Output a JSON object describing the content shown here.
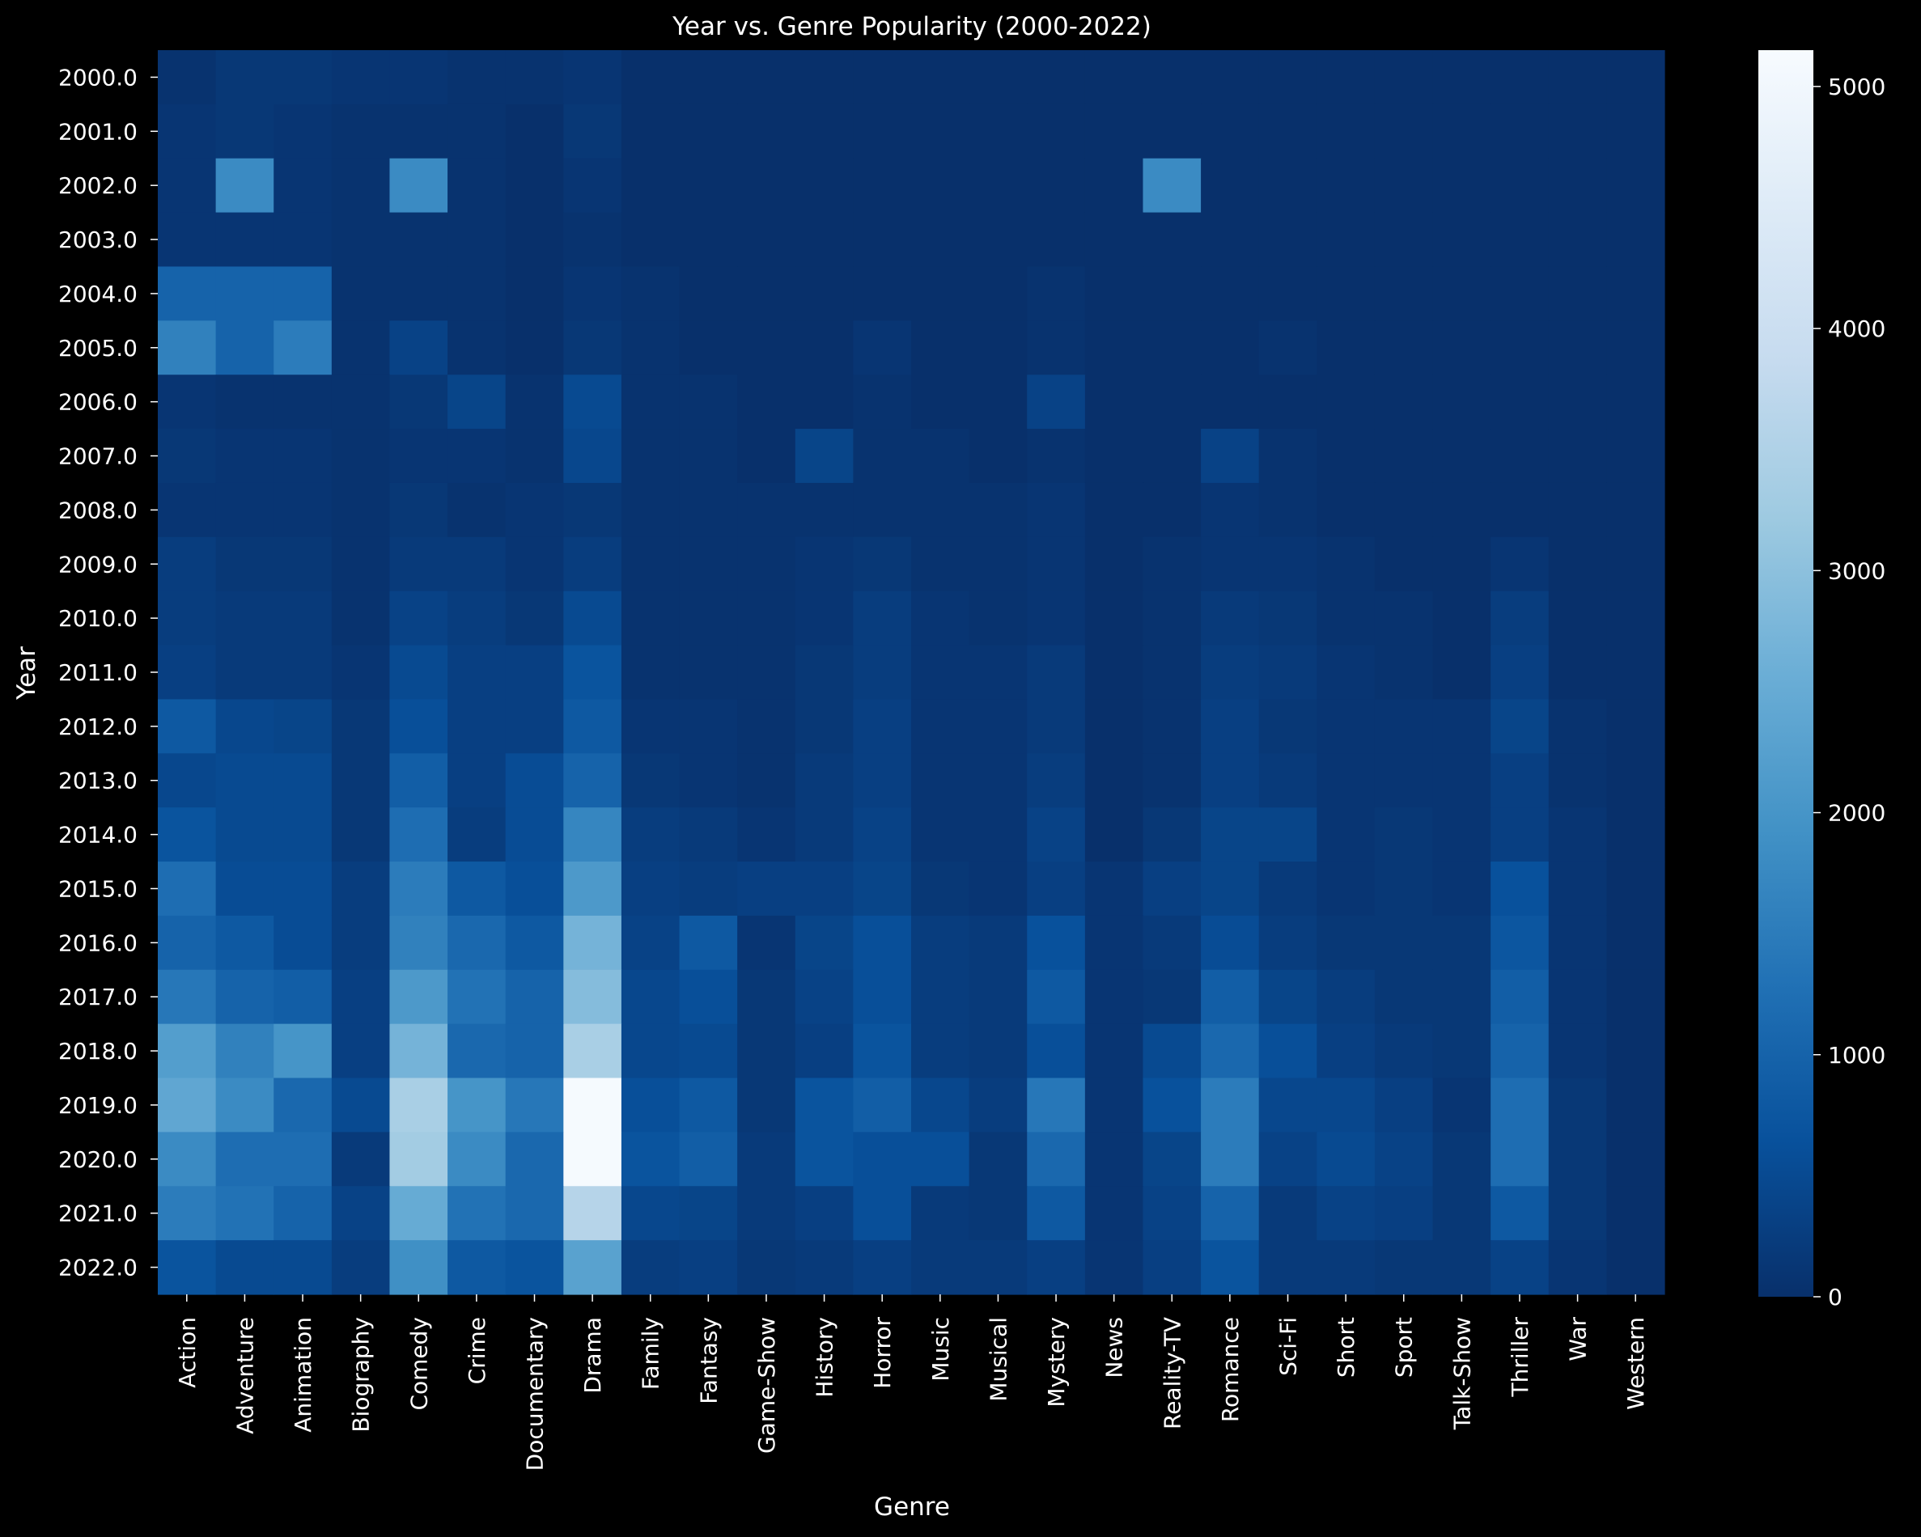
{
  "chart_data": {
    "type": "heatmap",
    "title": "Year vs. Genre Popularity (2000-2022)",
    "xlabel": "Genre",
    "ylabel": "Year",
    "x_categories": [
      "Action",
      "Adventure",
      "Animation",
      "Biography",
      "Comedy",
      "Crime",
      "Documentary",
      "Drama",
      "Family",
      "Fantasy",
      "Game-Show",
      "History",
      "Horror",
      "Music",
      "Musical",
      "Mystery",
      "News",
      "Reality-TV",
      "Romance",
      "Sci-Fi",
      "Short",
      "Sport",
      "Talk-Show",
      "Thriller",
      "War",
      "Western"
    ],
    "y_categories": [
      "2000.0",
      "2001.0",
      "2002.0",
      "2003.0",
      "2004.0",
      "2005.0",
      "2006.0",
      "2007.0",
      "2008.0",
      "2009.0",
      "2010.0",
      "2011.0",
      "2012.0",
      "2013.0",
      "2014.0",
      "2015.0",
      "2016.0",
      "2017.0",
      "2018.0",
      "2019.0",
      "2020.0",
      "2021.0",
      "2022.0"
    ],
    "values": [
      [
        50,
        150,
        150,
        100,
        100,
        50,
        50,
        100,
        0,
        0,
        0,
        0,
        0,
        0,
        0,
        0,
        0,
        0,
        0,
        0,
        0,
        0,
        0,
        0,
        0,
        0
      ],
      [
        100,
        150,
        100,
        50,
        50,
        50,
        0,
        150,
        0,
        0,
        0,
        0,
        0,
        0,
        0,
        0,
        0,
        0,
        0,
        0,
        0,
        0,
        0,
        0,
        0,
        0
      ],
      [
        100,
        1800,
        100,
        50,
        1800,
        50,
        0,
        100,
        0,
        0,
        0,
        0,
        0,
        0,
        0,
        0,
        0,
        1800,
        0,
        0,
        0,
        0,
        0,
        0,
        0,
        0
      ],
      [
        100,
        100,
        100,
        50,
        50,
        50,
        0,
        50,
        0,
        0,
        0,
        0,
        0,
        0,
        0,
        0,
        0,
        0,
        0,
        0,
        0,
        0,
        0,
        0,
        0,
        0
      ],
      [
        1000,
        1000,
        1000,
        50,
        50,
        50,
        0,
        100,
        50,
        0,
        0,
        0,
        0,
        0,
        0,
        50,
        0,
        0,
        0,
        0,
        0,
        0,
        0,
        0,
        0,
        0
      ],
      [
        1600,
        1000,
        1500,
        50,
        350,
        50,
        0,
        150,
        50,
        0,
        0,
        0,
        100,
        0,
        0,
        50,
        0,
        0,
        0,
        50,
        0,
        0,
        0,
        0,
        0,
        0
      ],
      [
        100,
        50,
        50,
        50,
        150,
        400,
        50,
        500,
        50,
        50,
        0,
        0,
        50,
        0,
        0,
        350,
        0,
        0,
        0,
        0,
        0,
        0,
        0,
        0,
        0,
        0
      ],
      [
        150,
        100,
        100,
        50,
        100,
        100,
        50,
        450,
        50,
        50,
        0,
        400,
        50,
        50,
        0,
        50,
        0,
        0,
        350,
        50,
        0,
        0,
        0,
        0,
        0,
        0
      ],
      [
        100,
        100,
        100,
        50,
        150,
        50,
        100,
        150,
        50,
        50,
        50,
        50,
        50,
        50,
        50,
        100,
        0,
        0,
        100,
        50,
        0,
        0,
        0,
        0,
        0,
        0
      ],
      [
        250,
        150,
        150,
        50,
        200,
        200,
        100,
        250,
        50,
        50,
        50,
        100,
        150,
        50,
        50,
        100,
        0,
        50,
        100,
        100,
        50,
        0,
        0,
        100,
        0,
        0
      ],
      [
        250,
        200,
        200,
        50,
        350,
        250,
        150,
        500,
        50,
        50,
        50,
        100,
        250,
        100,
        50,
        100,
        0,
        50,
        200,
        150,
        50,
        50,
        0,
        250,
        0,
        0
      ],
      [
        300,
        200,
        200,
        100,
        500,
        300,
        300,
        700,
        50,
        50,
        50,
        150,
        250,
        100,
        100,
        200,
        0,
        50,
        250,
        200,
        100,
        50,
        0,
        300,
        0,
        0
      ],
      [
        800,
        450,
        400,
        150,
        600,
        300,
        300,
        800,
        100,
        100,
        50,
        150,
        300,
        100,
        100,
        200,
        0,
        50,
        300,
        150,
        100,
        100,
        100,
        400,
        50,
        0
      ],
      [
        450,
        500,
        500,
        150,
        900,
        300,
        550,
        1000,
        150,
        100,
        50,
        200,
        300,
        100,
        100,
        250,
        0,
        50,
        300,
        200,
        100,
        100,
        100,
        300,
        50,
        0
      ],
      [
        700,
        500,
        500,
        150,
        1200,
        250,
        550,
        1700,
        250,
        200,
        100,
        200,
        350,
        100,
        100,
        350,
        0,
        150,
        400,
        400,
        100,
        150,
        100,
        300,
        100,
        0
      ],
      [
        1200,
        550,
        550,
        250,
        1500,
        800,
        600,
        2100,
        300,
        250,
        300,
        300,
        400,
        150,
        100,
        300,
        100,
        300,
        400,
        200,
        100,
        150,
        100,
        650,
        100,
        0
      ],
      [
        1000,
        800,
        550,
        250,
        1600,
        1100,
        800,
        2700,
        350,
        800,
        100,
        400,
        600,
        250,
        200,
        650,
        100,
        200,
        550,
        250,
        150,
        150,
        150,
        750,
        100,
        0
      ],
      [
        1400,
        1000,
        900,
        300,
        2100,
        1300,
        1000,
        2900,
        450,
        600,
        150,
        350,
        600,
        250,
        200,
        800,
        100,
        150,
        900,
        400,
        250,
        150,
        150,
        900,
        100,
        0
      ],
      [
        2200,
        1600,
        2000,
        300,
        2700,
        1100,
        1000,
        3400,
        450,
        500,
        150,
        300,
        700,
        250,
        200,
        600,
        100,
        500,
        1100,
        600,
        300,
        200,
        150,
        1000,
        100,
        0
      ],
      [
        2400,
        1800,
        1100,
        500,
        3400,
        2000,
        1400,
        5100,
        600,
        800,
        150,
        700,
        900,
        450,
        250,
        1400,
        100,
        650,
        1500,
        450,
        450,
        300,
        100,
        1200,
        150,
        0
      ],
      [
        1800,
        1200,
        1200,
        200,
        3300,
        1800,
        1100,
        5100,
        700,
        900,
        200,
        700,
        600,
        600,
        150,
        1100,
        100,
        400,
        1500,
        350,
        500,
        350,
        150,
        1200,
        150,
        0
      ],
      [
        1500,
        1300,
        1000,
        350,
        2500,
        1300,
        1100,
        3600,
        450,
        400,
        200,
        300,
        600,
        200,
        150,
        800,
        100,
        350,
        1000,
        200,
        350,
        300,
        150,
        800,
        150,
        0
      ],
      [
        700,
        500,
        500,
        250,
        1900,
        800,
        700,
        2300,
        250,
        300,
        150,
        200,
        300,
        200,
        200,
        300,
        100,
        300,
        700,
        200,
        200,
        150,
        150,
        350,
        100,
        0
      ]
    ],
    "colorscale": "Blues_r",
    "zlim": [
      0,
      5150
    ],
    "colorbar_ticks": [
      "0",
      "1000",
      "2000",
      "3000",
      "4000",
      "5000"
    ],
    "colorbar_tick_values": [
      0,
      1000,
      2000,
      3000,
      4000,
      5000
    ],
    "background": "#000000",
    "text_color": "#ffffff"
  }
}
